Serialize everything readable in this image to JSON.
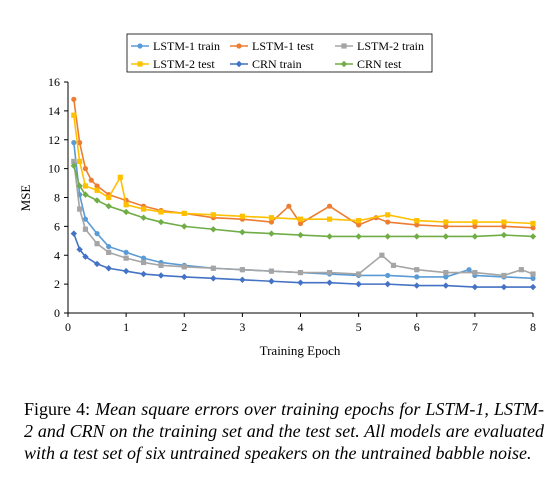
{
  "chart_data": {
    "type": "line",
    "xlabel": "Training Epoch",
    "ylabel": "MSE",
    "xlim": [
      0,
      8
    ],
    "ylim": [
      0,
      16
    ],
    "x_ticks": [
      "0",
      "1",
      "2",
      "3",
      "4",
      "5",
      "6",
      "7",
      "8"
    ],
    "y_ticks": [
      "0",
      "2",
      "4",
      "6",
      "8",
      "10",
      "12",
      "14",
      "16"
    ],
    "grid": "none",
    "legend_position": "top",
    "series": [
      {
        "name": "LSTM-1 train",
        "color": "#5B9BD5",
        "marker": "circle",
        "x": [
          0.1,
          0.2,
          0.3,
          0.5,
          0.7,
          1.0,
          1.3,
          1.6,
          2.0,
          2.5,
          3.0,
          3.5,
          4.0,
          4.5,
          5.0,
          5.5,
          6.0,
          6.5,
          6.9,
          7.0,
          7.5,
          8.0
        ],
        "values": [
          11.8,
          8.2,
          6.5,
          5.5,
          4.6,
          4.2,
          3.8,
          3.5,
          3.3,
          3.1,
          3.0,
          2.9,
          2.8,
          2.7,
          2.6,
          2.6,
          2.5,
          2.5,
          3.0,
          2.6,
          2.5,
          2.4
        ]
      },
      {
        "name": "LSTM-1 test",
        "color": "#ED7D31",
        "marker": "circle",
        "x": [
          0.1,
          0.2,
          0.3,
          0.4,
          0.5,
          0.7,
          1.0,
          1.3,
          1.6,
          2.0,
          2.5,
          3.0,
          3.5,
          3.8,
          4.0,
          4.5,
          5.0,
          5.3,
          5.5,
          6.0,
          6.5,
          7.0,
          7.5,
          8.0
        ],
        "values": [
          14.8,
          11.8,
          10.0,
          9.2,
          8.8,
          8.2,
          7.8,
          7.4,
          7.1,
          6.9,
          6.6,
          6.5,
          6.3,
          7.4,
          6.2,
          7.4,
          6.1,
          6.6,
          6.3,
          6.1,
          6.0,
          6.0,
          6.0,
          5.9
        ]
      },
      {
        "name": "LSTM-2 train",
        "color": "#A5A5A5",
        "marker": "square",
        "x": [
          0.1,
          0.2,
          0.3,
          0.5,
          0.7,
          1.0,
          1.3,
          1.6,
          2.0,
          2.5,
          3.0,
          3.5,
          4.0,
          4.5,
          5.0,
          5.4,
          5.6,
          6.0,
          6.5,
          7.0,
          7.5,
          7.8,
          8.0
        ],
        "values": [
          10.5,
          7.2,
          5.8,
          4.8,
          4.2,
          3.8,
          3.5,
          3.3,
          3.2,
          3.1,
          3.0,
          2.9,
          2.8,
          2.8,
          2.7,
          4.0,
          3.3,
          3.0,
          2.8,
          2.8,
          2.6,
          3.0,
          2.7
        ]
      },
      {
        "name": "LSTM-2 test",
        "color": "#FFC000",
        "marker": "square",
        "x": [
          0.1,
          0.2,
          0.3,
          0.5,
          0.7,
          0.9,
          1.0,
          1.3,
          1.6,
          2.0,
          2.5,
          3.0,
          3.5,
          4.0,
          4.5,
          5.0,
          5.5,
          6.0,
          6.5,
          7.0,
          7.5,
          8.0
        ],
        "values": [
          13.7,
          10.5,
          8.8,
          8.5,
          8.0,
          9.4,
          7.5,
          7.2,
          7.0,
          6.9,
          6.8,
          6.7,
          6.6,
          6.5,
          6.5,
          6.4,
          6.8,
          6.4,
          6.3,
          6.3,
          6.3,
          6.2
        ]
      },
      {
        "name": "CRN train",
        "color": "#4472C4",
        "marker": "diamond",
        "x": [
          0.1,
          0.2,
          0.3,
          0.5,
          0.7,
          1.0,
          1.3,
          1.6,
          2.0,
          2.5,
          3.0,
          3.5,
          4.0,
          4.5,
          5.0,
          5.5,
          6.0,
          6.5,
          7.0,
          7.5,
          8.0
        ],
        "values": [
          5.5,
          4.4,
          3.9,
          3.4,
          3.1,
          2.9,
          2.7,
          2.6,
          2.5,
          2.4,
          2.3,
          2.2,
          2.1,
          2.1,
          2.0,
          2.0,
          1.9,
          1.9,
          1.8,
          1.8,
          1.8
        ]
      },
      {
        "name": "CRN test",
        "color": "#70AD47",
        "marker": "diamond",
        "x": [
          0.1,
          0.2,
          0.3,
          0.5,
          0.7,
          1.0,
          1.3,
          1.6,
          2.0,
          2.5,
          3.0,
          3.5,
          4.0,
          4.5,
          5.0,
          5.5,
          6.0,
          6.5,
          7.0,
          7.5,
          8.0
        ],
        "values": [
          10.2,
          8.8,
          8.2,
          7.8,
          7.4,
          7.0,
          6.6,
          6.3,
          6.0,
          5.8,
          5.6,
          5.5,
          5.4,
          5.3,
          5.3,
          5.3,
          5.3,
          5.3,
          5.3,
          5.4,
          5.3
        ]
      }
    ]
  },
  "caption": {
    "label": "Figure 4:",
    "text": "Mean square errors over training epochs for LSTM-1, LSTM-2 and CRN on the training set and the test set.  All models are evaluated with a test set of six untrained speakers on the untrained babble noise."
  }
}
